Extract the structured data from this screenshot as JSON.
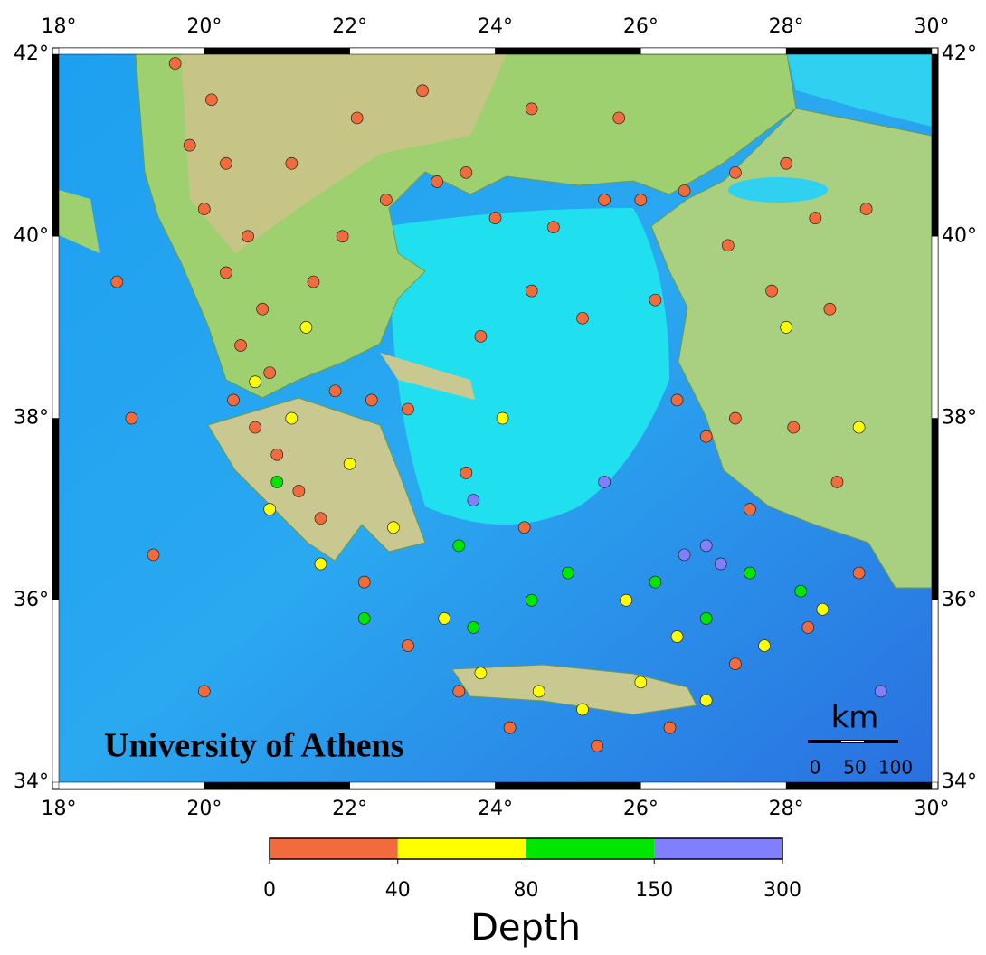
{
  "map": {
    "xlim": [
      18,
      30
    ],
    "ylim": [
      34,
      42
    ],
    "xticks": [
      {
        "value": 18,
        "label": "18°"
      },
      {
        "value": 20,
        "label": "20°"
      },
      {
        "value": 22,
        "label": "22°"
      },
      {
        "value": 24,
        "label": "24°"
      },
      {
        "value": 26,
        "label": "26°"
      },
      {
        "value": 28,
        "label": "28°"
      },
      {
        "value": 30,
        "label": "30°"
      }
    ],
    "yticks": [
      {
        "value": 34,
        "label": "34°"
      },
      {
        "value": 36,
        "label": "36°"
      },
      {
        "value": 38,
        "label": "38°"
      },
      {
        "value": 40,
        "label": "40°"
      },
      {
        "value": 42,
        "label": "42°"
      }
    ],
    "watermark": "University of Athens",
    "scale_bar": {
      "unit": "km",
      "labels": [
        "0",
        "50",
        "100"
      ]
    },
    "colorbar": {
      "title": "Depth",
      "bounds": [
        0,
        40,
        80,
        150,
        300
      ],
      "colors": [
        "#f26b3c",
        "#ffff00",
        "#00e600",
        "#8080ff"
      ]
    },
    "points": [
      [
        19.6,
        41.9,
        10
      ],
      [
        20.1,
        41.5,
        15
      ],
      [
        19.8,
        41.0,
        10
      ],
      [
        20.3,
        40.8,
        20
      ],
      [
        20.0,
        40.3,
        12
      ],
      [
        20.6,
        40.0,
        15
      ],
      [
        20.3,
        39.6,
        10
      ],
      [
        20.8,
        39.2,
        18
      ],
      [
        20.5,
        38.8,
        10
      ],
      [
        20.9,
        38.5,
        15
      ],
      [
        20.4,
        38.2,
        12
      ],
      [
        20.7,
        37.9,
        10
      ],
      [
        21.0,
        37.6,
        20
      ],
      [
        21.3,
        37.2,
        15
      ],
      [
        21.6,
        36.9,
        10
      ],
      [
        21.8,
        38.3,
        10
      ],
      [
        22.3,
        38.2,
        12
      ],
      [
        22.8,
        38.1,
        10
      ],
      [
        21.5,
        39.5,
        15
      ],
      [
        21.9,
        40.0,
        10
      ],
      [
        21.2,
        40.8,
        12
      ],
      [
        22.5,
        40.4,
        15
      ],
      [
        23.2,
        40.6,
        10
      ],
      [
        23.6,
        40.7,
        12
      ],
      [
        22.1,
        41.3,
        10
      ],
      [
        23.0,
        41.6,
        14
      ],
      [
        24.5,
        41.4,
        10
      ],
      [
        25.7,
        41.3,
        15
      ],
      [
        24.0,
        40.2,
        10
      ],
      [
        24.8,
        40.1,
        12
      ],
      [
        25.5,
        40.4,
        10
      ],
      [
        26.0,
        40.4,
        10
      ],
      [
        26.6,
        40.5,
        15
      ],
      [
        27.3,
        40.7,
        10
      ],
      [
        28.0,
        40.8,
        12
      ],
      [
        28.4,
        40.2,
        10
      ],
      [
        29.1,
        40.3,
        15
      ],
      [
        27.2,
        39.9,
        10
      ],
      [
        27.8,
        39.4,
        12
      ],
      [
        28.6,
        39.2,
        10
      ],
      [
        26.2,
        39.3,
        12
      ],
      [
        25.2,
        39.1,
        10
      ],
      [
        24.5,
        39.4,
        15
      ],
      [
        23.8,
        38.9,
        10
      ],
      [
        26.5,
        38.2,
        12
      ],
      [
        27.3,
        38.0,
        10
      ],
      [
        28.1,
        37.9,
        14
      ],
      [
        28.7,
        37.3,
        10
      ],
      [
        27.5,
        37.0,
        12
      ],
      [
        26.9,
        37.8,
        10
      ],
      [
        23.6,
        37.4,
        10
      ],
      [
        24.4,
        36.8,
        12
      ],
      [
        22.2,
        36.2,
        10
      ],
      [
        22.8,
        35.5,
        15
      ],
      [
        23.5,
        35.0,
        10
      ],
      [
        24.2,
        34.6,
        12
      ],
      [
        25.4,
        34.4,
        10
      ],
      [
        26.4,
        34.6,
        15
      ],
      [
        27.3,
        35.3,
        10
      ],
      [
        28.3,
        35.7,
        12
      ],
      [
        29.0,
        36.3,
        10
      ],
      [
        19.3,
        36.5,
        10
      ],
      [
        18.8,
        39.5,
        12
      ],
      [
        19.0,
        38.0,
        10
      ],
      [
        20.0,
        35.0,
        10
      ],
      [
        20.7,
        38.4,
        55
      ],
      [
        21.2,
        38.0,
        60
      ],
      [
        20.9,
        37.0,
        50
      ],
      [
        21.6,
        36.4,
        65
      ],
      [
        22.0,
        37.5,
        55
      ],
      [
        22.6,
        36.8,
        50
      ],
      [
        23.3,
        35.8,
        60
      ],
      [
        23.8,
        35.2,
        55
      ],
      [
        24.6,
        35.0,
        50
      ],
      [
        25.2,
        34.8,
        60
      ],
      [
        26.0,
        35.1,
        55
      ],
      [
        26.9,
        34.9,
        50
      ],
      [
        27.7,
        35.5,
        60
      ],
      [
        28.5,
        35.9,
        55
      ],
      [
        29.0,
        37.9,
        50
      ],
      [
        28.0,
        39.0,
        60
      ],
      [
        21.4,
        39.0,
        55
      ],
      [
        24.1,
        38.0,
        50
      ],
      [
        25.8,
        36.0,
        55
      ],
      [
        26.5,
        35.6,
        60
      ],
      [
        23.5,
        36.6,
        100
      ],
      [
        24.5,
        36.0,
        110
      ],
      [
        25.0,
        36.3,
        95
      ],
      [
        26.2,
        36.2,
        100
      ],
      [
        26.9,
        35.8,
        105
      ],
      [
        27.5,
        36.3,
        100
      ],
      [
        22.2,
        35.8,
        90
      ],
      [
        28.2,
        36.1,
        120
      ],
      [
        21.0,
        37.3,
        95
      ],
      [
        23.7,
        35.7,
        100
      ],
      [
        26.6,
        36.5,
        170
      ],
      [
        26.9,
        36.6,
        180
      ],
      [
        27.1,
        36.4,
        160
      ],
      [
        23.7,
        37.1,
        170
      ],
      [
        25.5,
        37.3,
        165
      ],
      [
        29.3,
        35.0,
        170
      ]
    ]
  }
}
